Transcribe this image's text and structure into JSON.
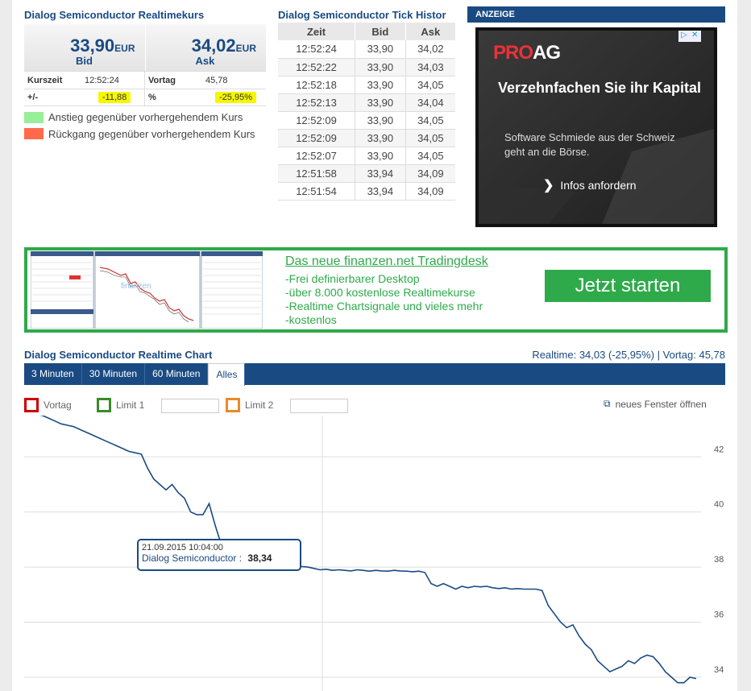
{
  "realtime": {
    "title": "Dialog Semiconductor Realtimekurs",
    "bid_price": "33,90",
    "ask_price": "34,02",
    "currency": "EUR",
    "bid_label": "Bid",
    "ask_label": "Ask",
    "kurszeit_label": "Kurszeit",
    "kurszeit_value": "12:52:24",
    "vortag_label": "Vortag",
    "vortag_value": "45,78",
    "diff_label": "+/-",
    "diff_value": "-11,88",
    "pct_label": "%",
    "pct_value": "-25,95%",
    "legend_up": "Anstieg gegenüber vorhergehendem Kurs",
    "legend_down": "Rückgang gegenüber vorhergehendem Kurs",
    "color_up": "#99ee99",
    "color_down": "#ff6a4d"
  },
  "tick": {
    "title": "Dialog Semiconductor Tick Histor",
    "headers": [
      "Zeit",
      "Bid",
      "Ask"
    ],
    "rows": [
      [
        "12:52:24",
        "33,90",
        "34,02"
      ],
      [
        "12:52:22",
        "33,90",
        "34,03"
      ],
      [
        "12:52:18",
        "33,90",
        "34,05"
      ],
      [
        "12:52:13",
        "33,90",
        "34,04"
      ],
      [
        "12:52:09",
        "33,90",
        "34,05"
      ],
      [
        "12:52:09",
        "33,90",
        "34,05"
      ],
      [
        "12:52:07",
        "33,90",
        "34,05"
      ],
      [
        "12:51:58",
        "33,94",
        "34,09"
      ],
      [
        "12:51:54",
        "33,94",
        "34,09"
      ]
    ]
  },
  "ad": {
    "header": "ANZEIGE",
    "brand_red": "PRO",
    "brand_white": "AG",
    "headline": "Verzehnfachen Sie ihr Kapital",
    "body": "Software Schmiede aus der Schweiz geht an die Börse.",
    "cta": "Infos anfordern"
  },
  "tradingdesk": {
    "title": "Das neue finanzen.net Tradingdesk",
    "bullets": [
      "-Frei definierbarer Desktop",
      "-über 8.000 kostenlose Realtimekurse",
      "-Realtime Chartsignale und vieles mehr",
      "-kostenlos"
    ],
    "button": "Jetzt starten",
    "color": "#2eaa4a"
  },
  "chart_section": {
    "title": "Dialog Semiconductor Realtime Chart",
    "info": "Realtime: 34,03 (-25,95%) | Vortag: 45,78",
    "tabs": [
      "3 Minuten",
      "30 Minuten",
      "60 Minuten",
      "Alles"
    ],
    "active_tab": 3,
    "vortag_label": "Vortag",
    "limit1_label": "Limit 1",
    "limit2_label": "Limit 2",
    "new_window": "neues Fenster öffnen",
    "tooltip_date": "21.09.2015 10:04:00",
    "tooltip_series": "Dialog Semiconductor :",
    "tooltip_value": "38,34"
  },
  "chart_data": {
    "type": "line",
    "y_ticks": [
      "42",
      "40",
      "38",
      "36",
      "34"
    ],
    "ylim": [
      33.5,
      43.5
    ],
    "grid": true,
    "series": [
      {
        "name": "Dialog Semiconductor",
        "color": "#1a4a82",
        "values": [
          43.6,
          43.6,
          43.55,
          43.5,
          43.4,
          43.3,
          43.2,
          43.15,
          43.1,
          43.0,
          42.9,
          42.8,
          42.7,
          42.6,
          42.5,
          42.4,
          42.3,
          42.2,
          42.15,
          42.1,
          41.6,
          41.2,
          41.0,
          40.8,
          41.0,
          40.7,
          40.5,
          40.0,
          39.9,
          39.9,
          40.3,
          39.5,
          38.8,
          38.6,
          38.45,
          38.4,
          38.36,
          38.34,
          38.3,
          38.2,
          38.15,
          38.12,
          38.1,
          38.06,
          38.05,
          38.02,
          38.0,
          37.95,
          37.9,
          37.92,
          37.88,
          37.9,
          37.88,
          37.86,
          37.9,
          37.88,
          37.85,
          37.88,
          37.86,
          37.85,
          37.88,
          37.86,
          37.85,
          37.83,
          37.85,
          37.8,
          37.4,
          37.3,
          37.4,
          37.3,
          37.2,
          37.3,
          37.25,
          37.3,
          37.28,
          37.3,
          37.25,
          37.22,
          37.25,
          37.2,
          37.22,
          37.2,
          37.2,
          37.2,
          37.15,
          36.6,
          36.3,
          36.0,
          35.8,
          35.9,
          35.5,
          35.2,
          35.0,
          34.6,
          34.4,
          34.2,
          34.3,
          34.4,
          34.6,
          34.5,
          34.7,
          34.8,
          34.75,
          34.5,
          34.2,
          34.0,
          33.8,
          33.8,
          34.0,
          33.95
        ]
      }
    ]
  }
}
